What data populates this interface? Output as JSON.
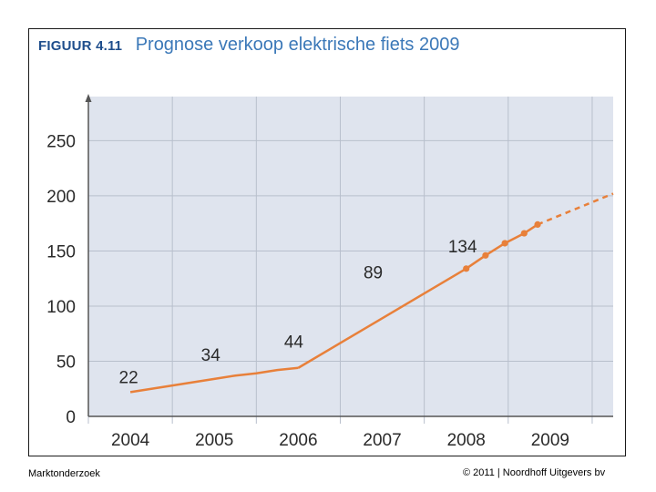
{
  "figure": {
    "label": "FIGUUR 4.11",
    "caption": "Prognose verkoop elektrische fiets 2009"
  },
  "footer": {
    "left": "Marktonderzoek",
    "right": "© 2011  |  Noordhoff Uitgevers bv"
  },
  "colors": {
    "plot_background": "#dfe4ee",
    "grid": "#b8bfcc",
    "axis": "#555555",
    "series": "#e8803a",
    "frame": "#1a1a1a",
    "title_label": "#1f4e8c",
    "title_text": "#3b78b8"
  },
  "chart_data": {
    "type": "line",
    "title": "Prognose verkoop elektrische fiets 2009",
    "xlabel": "",
    "ylabel": "",
    "ylim": [
      0,
      290
    ],
    "xlim": [
      2003.5,
      2009.75
    ],
    "grid": true,
    "legend": "none",
    "y_ticks": [
      "0",
      "50",
      "100",
      "150",
      "200",
      "250"
    ],
    "y_tick_values": [
      0,
      50,
      100,
      150,
      200,
      250
    ],
    "x_tick_values": [
      2004,
      2005,
      2006,
      2007,
      2008,
      2009
    ],
    "x_tick_labels": [
      "2004",
      "2005",
      "2006",
      "2007",
      "2008",
      "2009"
    ],
    "x_gridlines": [
      2003.5,
      2004.5,
      2005.5,
      2006.5,
      2007.5,
      2008.5,
      2009.5
    ],
    "actual": {
      "x": [
        2004,
        2004.25,
        2004.5,
        2004.75,
        2005,
        2005.25,
        2005.5,
        2005.75,
        2006
      ],
      "y": [
        22,
        25,
        28,
        31,
        34,
        37,
        39,
        42,
        44
      ]
    },
    "forecast_solid": {
      "x": [
        2006,
        2007,
        2008,
        2008.23,
        2008.46,
        2008.69,
        2008.85
      ],
      "y": [
        44,
        89,
        134,
        146,
        157,
        166,
        174
      ]
    },
    "forecast_markers": {
      "x": [
        2008,
        2008.23,
        2008.46,
        2008.69,
        2008.85
      ],
      "y": [
        134,
        146,
        157,
        166,
        174
      ]
    },
    "forecast_dashed": {
      "x": [
        2008.85,
        2009.75
      ],
      "y": [
        174,
        202
      ]
    },
    "data_labels": [
      {
        "text": "22",
        "x": 2004,
        "y": 22
      },
      {
        "text": "34",
        "x": 2005,
        "y": 34
      },
      {
        "text": "44",
        "x": 2006,
        "y": 44
      },
      {
        "text": "89",
        "x": 2007,
        "y": 89
      },
      {
        "text": "134",
        "x": 2008,
        "y": 134
      }
    ]
  }
}
